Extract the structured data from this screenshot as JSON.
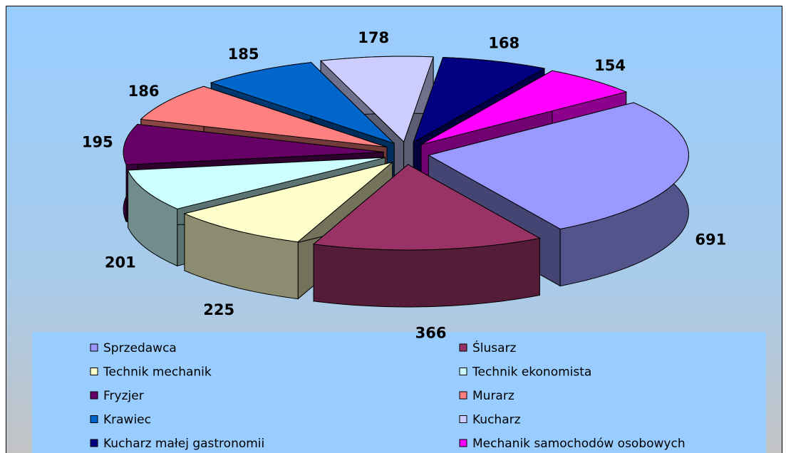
{
  "chart_data": {
    "type": "pie3d",
    "categories": [
      "Sprzedawca",
      "Ślusarz",
      "Technik mechanik",
      "Technik ekonomista",
      "Fryzjer",
      "Murarz",
      "Krawiec",
      "Kucharz",
      "Kucharz małej gastronomii",
      "Mechanik samochodów osobowych"
    ],
    "values": [
      691,
      366,
      225,
      201,
      195,
      186,
      185,
      178,
      168,
      154
    ],
    "colors": [
      "#9999ff",
      "#993366",
      "#ffffcc",
      "#ccffff",
      "#660066",
      "#ff8080",
      "#0066cc",
      "#ccccff",
      "#000080",
      "#ff00ff"
    ],
    "legend": "bottom"
  }
}
